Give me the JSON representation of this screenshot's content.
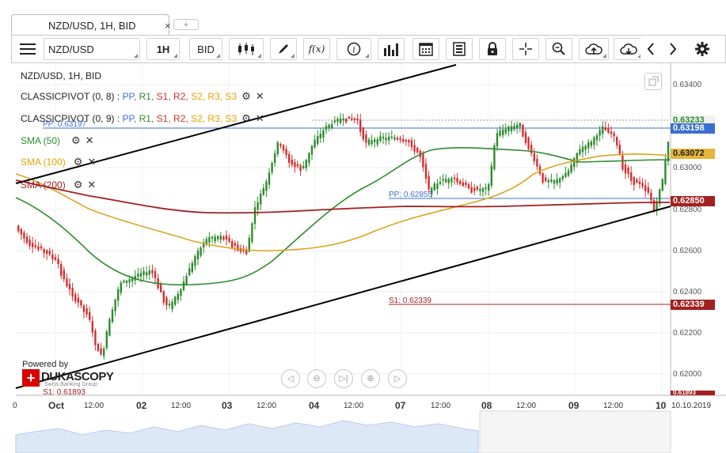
{
  "tab": {
    "title": "NZD/USD, 1H, BID",
    "close": "×",
    "add": "+"
  },
  "toolbar": {
    "instrument": "NZD/USD",
    "period": "1H",
    "side": "BID",
    "fx_label": "f(x)"
  },
  "legend": {
    "main": "NZD/USD, 1H, BID",
    "pivot1_name": "CLASSICPIVOT (0, 8)",
    "pivot2_name": "CLASSICPIVOT (0, 9)",
    "pivot_sep": " : ",
    "pp": "PP,",
    "r1": "R1,",
    "s1": "S1,",
    "r2": "R2,",
    "s2": "S2,",
    "r3": "R3,",
    "s3": "S3",
    "sma50": "SMA (50)",
    "sma100": "SMA (100)",
    "sma200": "SMA (200)"
  },
  "chart_notes": {
    "pp_top": "PP: 0.63197",
    "pp_mid": "PP: 0.62853",
    "s1_mid": "S1: 0.62339",
    "s1_bottom": "S1: 0.61893"
  },
  "price_tags": {
    "pp_top": "0.63198",
    "current_top": "0.63233",
    "sma100": "0.63072",
    "sma200": "0.62850",
    "s1": "0.62339",
    "bottom": "0.61893"
  },
  "price_axis": [
    "0.63400",
    "0.63000",
    "0.62800",
    "0.62600",
    "0.62400",
    "0.62200",
    "0.62000"
  ],
  "time_axis": [
    {
      "label": "Oct",
      "big": true
    },
    {
      "label": "12:00",
      "big": false
    },
    {
      "label": "02",
      "big": true
    },
    {
      "label": "12:00",
      "big": false
    },
    {
      "label": "03",
      "big": true
    },
    {
      "label": "12:00",
      "big": false
    },
    {
      "label": "04",
      "big": true
    },
    {
      "label": "12:00",
      "big": false
    },
    {
      "label": "07",
      "big": true
    },
    {
      "label": "12:00",
      "big": false
    },
    {
      "label": "08",
      "big": true
    },
    {
      "label": "12:00",
      "big": false
    },
    {
      "label": "09",
      "big": true
    },
    {
      "label": "12:00",
      "big": false
    },
    {
      "label": "10",
      "big": true
    },
    {
      "label": "10.10.2019",
      "big": false
    }
  ],
  "edge_label": "0",
  "powered": "Powered by",
  "logo": {
    "name": "DUKASCOPY",
    "sub": "Swiss Banking Group",
    "cross": "+"
  },
  "colors": {
    "candle": "#2e8b2e",
    "candle_down": "#d32f2f",
    "sma50": "#2e8b2e",
    "sma100": "#d9a520",
    "sma200": "#a32020",
    "pivot": "#3b6fd0",
    "s1": "#a32020"
  }
}
